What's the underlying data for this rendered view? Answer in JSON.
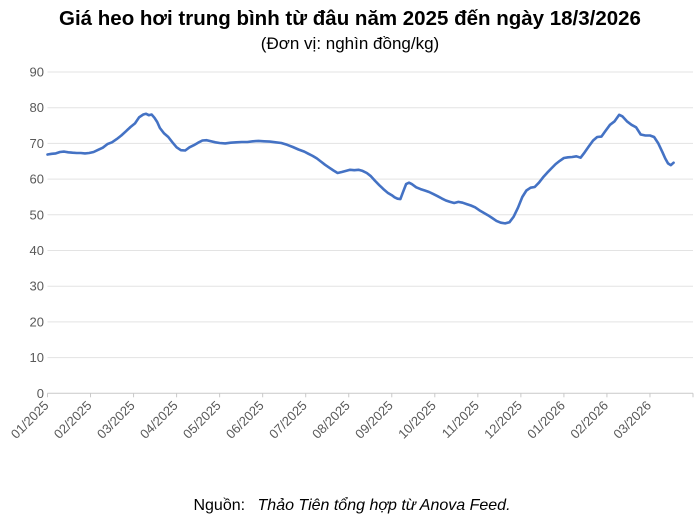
{
  "header": {
    "title": "Giá heo hơi trung bình từ đâu năm 2025 đến ngày 18/3/2026",
    "subtitle": "(Đơn vị: nghìn đồng/kg)"
  },
  "footer": {
    "source_label": "Nguồn:",
    "source_text": "Thảo Tiên tổng hợp từ Anova Feed."
  },
  "colors": {
    "line": "#4472c4",
    "gridline": "#e3e3e3",
    "axis": "#c9c9c9",
    "tick_label": "#595959",
    "title_text": "#000000"
  },
  "chart_data": {
    "type": "line",
    "title": "Giá heo hơi trung bình từ đâu năm 2025 đến ngày 18/3/2026",
    "subtitle": "(Đơn vị: nghìn đồng/kg)",
    "xlabel": "",
    "ylabel": "",
    "unit": "nghìn đồng/kg",
    "ylim": [
      0,
      90
    ],
    "grid": true,
    "legend": "none",
    "line_color": "#4472c4",
    "y_axis": {
      "min": 0,
      "max": 90,
      "step": 10,
      "tick_labels": [
        "0",
        "10",
        "20",
        "30",
        "40",
        "50",
        "60",
        "70",
        "80",
        "90"
      ]
    },
    "x_axis": {
      "tick_labels": [
        "01/2025",
        "02/2025",
        "03/2025",
        "04/2025",
        "05/2025",
        "06/2025",
        "07/2025",
        "08/2025",
        "09/2025",
        "10/2025",
        "11/2025",
        "12/2025",
        "01/2026",
        "02/2026",
        "03/2026"
      ]
    },
    "points": [
      [
        "2025-01-01",
        66.9
      ],
      [
        "2025-01-04",
        67.1
      ],
      [
        "2025-01-07",
        67.2
      ],
      [
        "2025-01-10",
        67.6
      ],
      [
        "2025-01-13",
        67.7
      ],
      [
        "2025-01-16",
        67.5
      ],
      [
        "2025-01-19",
        67.4
      ],
      [
        "2025-01-22",
        67.3
      ],
      [
        "2025-01-25",
        67.3
      ],
      [
        "2025-01-28",
        67.2
      ],
      [
        "2025-01-31",
        67.3
      ],
      [
        "2025-02-03",
        67.6
      ],
      [
        "2025-02-06",
        68.2
      ],
      [
        "2025-02-09",
        68.8
      ],
      [
        "2025-02-12",
        69.8
      ],
      [
        "2025-02-15",
        70.3
      ],
      [
        "2025-02-18",
        71.2
      ],
      [
        "2025-02-21",
        72.2
      ],
      [
        "2025-02-24",
        73.4
      ],
      [
        "2025-02-27",
        74.6
      ],
      [
        "2025-03-02",
        75.6
      ],
      [
        "2025-03-05",
        77.3
      ],
      [
        "2025-03-08",
        78.1
      ],
      [
        "2025-03-10",
        78.3
      ],
      [
        "2025-03-12",
        77.9
      ],
      [
        "2025-03-14",
        78.1
      ],
      [
        "2025-03-16",
        77.2
      ],
      [
        "2025-03-18",
        76.0
      ],
      [
        "2025-03-20",
        74.3
      ],
      [
        "2025-03-23",
        72.8
      ],
      [
        "2025-03-26",
        71.8
      ],
      [
        "2025-03-29",
        70.3
      ],
      [
        "2025-04-01",
        68.9
      ],
      [
        "2025-04-04",
        68.1
      ],
      [
        "2025-04-07",
        68.0
      ],
      [
        "2025-04-10",
        68.9
      ],
      [
        "2025-04-13",
        69.5
      ],
      [
        "2025-04-16",
        70.2
      ],
      [
        "2025-04-19",
        70.8
      ],
      [
        "2025-04-22",
        70.9
      ],
      [
        "2025-04-25",
        70.6
      ],
      [
        "2025-04-28",
        70.3
      ],
      [
        "2025-05-01",
        70.1
      ],
      [
        "2025-05-05",
        70.0
      ],
      [
        "2025-05-09",
        70.2
      ],
      [
        "2025-05-13",
        70.3
      ],
      [
        "2025-05-17",
        70.4
      ],
      [
        "2025-05-21",
        70.4
      ],
      [
        "2025-05-25",
        70.6
      ],
      [
        "2025-05-29",
        70.7
      ],
      [
        "2025-06-02",
        70.6
      ],
      [
        "2025-06-06",
        70.5
      ],
      [
        "2025-06-10",
        70.3
      ],
      [
        "2025-06-14",
        70.1
      ],
      [
        "2025-06-18",
        69.6
      ],
      [
        "2025-06-22",
        69.0
      ],
      [
        "2025-06-26",
        68.3
      ],
      [
        "2025-06-30",
        67.7
      ],
      [
        "2025-07-03",
        67.1
      ],
      [
        "2025-07-06",
        66.5
      ],
      [
        "2025-07-09",
        65.8
      ],
      [
        "2025-07-12",
        64.9
      ],
      [
        "2025-07-15",
        64.0
      ],
      [
        "2025-07-18",
        63.2
      ],
      [
        "2025-07-21",
        62.4
      ],
      [
        "2025-07-24",
        61.7
      ],
      [
        "2025-07-27",
        62.0
      ],
      [
        "2025-07-30",
        62.3
      ],
      [
        "2025-08-02",
        62.6
      ],
      [
        "2025-08-05",
        62.5
      ],
      [
        "2025-08-08",
        62.6
      ],
      [
        "2025-08-11",
        62.3
      ],
      [
        "2025-08-14",
        61.7
      ],
      [
        "2025-08-17",
        60.8
      ],
      [
        "2025-08-20",
        59.5
      ],
      [
        "2025-08-23",
        58.3
      ],
      [
        "2025-08-26",
        57.2
      ],
      [
        "2025-08-29",
        56.2
      ],
      [
        "2025-09-01",
        55.5
      ],
      [
        "2025-09-03",
        54.9
      ],
      [
        "2025-09-05",
        54.5
      ],
      [
        "2025-09-07",
        54.4
      ],
      [
        "2025-09-09",
        56.5
      ],
      [
        "2025-09-11",
        58.6
      ],
      [
        "2025-09-13",
        59.0
      ],
      [
        "2025-09-15",
        58.6
      ],
      [
        "2025-09-18",
        57.7
      ],
      [
        "2025-09-21",
        57.2
      ],
      [
        "2025-09-24",
        56.8
      ],
      [
        "2025-09-27",
        56.4
      ],
      [
        "2025-09-30",
        55.8
      ],
      [
        "2025-10-03",
        55.2
      ],
      [
        "2025-10-06",
        54.6
      ],
      [
        "2025-10-09",
        54.0
      ],
      [
        "2025-10-12",
        53.6
      ],
      [
        "2025-10-15",
        53.3
      ],
      [
        "2025-10-18",
        53.6
      ],
      [
        "2025-10-21",
        53.4
      ],
      [
        "2025-10-24",
        53.0
      ],
      [
        "2025-10-27",
        52.6
      ],
      [
        "2025-10-30",
        52.1
      ],
      [
        "2025-11-02",
        51.3
      ],
      [
        "2025-11-05",
        50.6
      ],
      [
        "2025-11-08",
        49.9
      ],
      [
        "2025-11-11",
        49.1
      ],
      [
        "2025-11-14",
        48.3
      ],
      [
        "2025-11-17",
        47.8
      ],
      [
        "2025-11-20",
        47.6
      ],
      [
        "2025-11-23",
        47.9
      ],
      [
        "2025-11-26",
        49.5
      ],
      [
        "2025-11-29",
        52.0
      ],
      [
        "2025-12-02",
        55.0
      ],
      [
        "2025-12-05",
        56.8
      ],
      [
        "2025-12-08",
        57.6
      ],
      [
        "2025-12-11",
        57.8
      ],
      [
        "2025-12-14",
        59.0
      ],
      [
        "2025-12-17",
        60.5
      ],
      [
        "2025-12-20",
        61.8
      ],
      [
        "2025-12-23",
        63.0
      ],
      [
        "2025-12-26",
        64.2
      ],
      [
        "2025-12-29",
        65.1
      ],
      [
        "2026-01-01",
        65.9
      ],
      [
        "2026-01-04",
        66.1
      ],
      [
        "2026-01-07",
        66.2
      ],
      [
        "2026-01-10",
        66.4
      ],
      [
        "2026-01-13",
        66.0
      ],
      [
        "2026-01-16",
        67.5
      ],
      [
        "2026-01-19",
        69.2
      ],
      [
        "2026-01-22",
        70.8
      ],
      [
        "2026-01-25",
        71.8
      ],
      [
        "2026-01-28",
        71.9
      ],
      [
        "2026-01-31",
        73.5
      ],
      [
        "2026-02-03",
        75.2
      ],
      [
        "2026-02-06",
        76.2
      ],
      [
        "2026-02-09",
        78.0
      ],
      [
        "2026-02-11",
        77.6
      ],
      [
        "2026-02-14",
        76.2
      ],
      [
        "2026-02-17",
        75.2
      ],
      [
        "2026-02-20",
        74.5
      ],
      [
        "2026-02-23",
        72.5
      ],
      [
        "2026-02-26",
        72.2
      ],
      [
        "2026-03-01",
        72.2
      ],
      [
        "2026-03-04",
        71.8
      ],
      [
        "2026-03-07",
        70.0
      ],
      [
        "2026-03-10",
        67.5
      ],
      [
        "2026-03-12",
        65.8
      ],
      [
        "2026-03-14",
        64.4
      ],
      [
        "2026-03-16",
        63.9
      ],
      [
        "2026-03-18",
        64.6
      ]
    ]
  }
}
